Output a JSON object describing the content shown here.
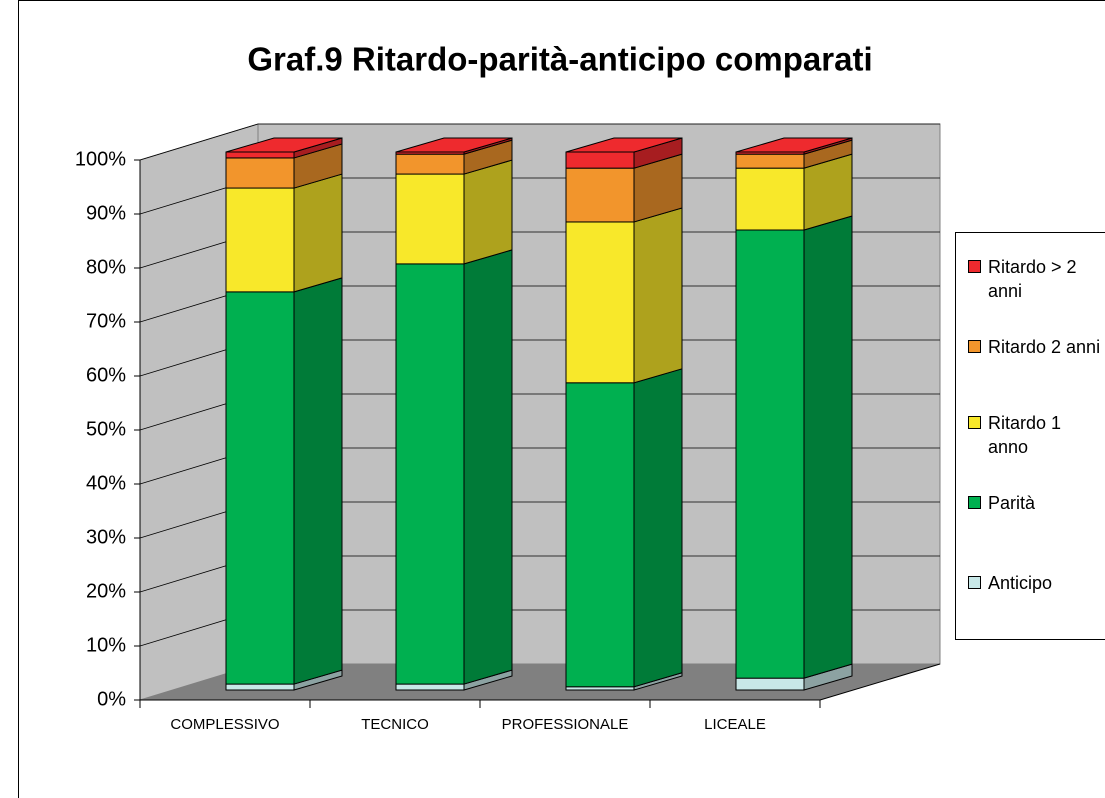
{
  "chart_data": {
    "type": "bar",
    "stacked": true,
    "three_d": true,
    "title": "Graf.9 Ritardo-parità-anticipo comparati",
    "categories": [
      "COMPLESSIVO",
      "TECNICO",
      "PROFESSIONALE",
      "LICEALE"
    ],
    "series": [
      {
        "name": "Anticipo",
        "color": "#c8e8e8",
        "values": [
          1.1,
          1.1,
          0.6,
          2.2
        ]
      },
      {
        "name": "Parità",
        "color": "#00b050",
        "values": [
          72.9,
          78.1,
          56.5,
          83.3
        ]
      },
      {
        "name": "Ritardo 1 anno",
        "color": "#f8e82a",
        "values": [
          19.3,
          16.7,
          29.9,
          11.5
        ]
      },
      {
        "name": "Ritardo 2 anni",
        "color": "#f2952c",
        "values": [
          5.6,
          3.7,
          10.0,
          2.6
        ]
      },
      {
        "name": "Ritardo > 2 anni",
        "color": "#ee2a2e",
        "values": [
          1.1,
          0.4,
          3.0,
          0.4
        ]
      }
    ],
    "ylim": [
      0,
      100
    ],
    "yticks": [
      {
        "value": 0,
        "label": "0%"
      },
      {
        "value": 10,
        "label": "10%"
      },
      {
        "value": 20,
        "label": "20%"
      },
      {
        "value": 30,
        "label": "30%"
      },
      {
        "value": 40,
        "label": "40%"
      },
      {
        "value": 50,
        "label": "50%"
      },
      {
        "value": 60,
        "label": "60%"
      },
      {
        "value": 70,
        "label": "70%"
      },
      {
        "value": 80,
        "label": "80%"
      },
      {
        "value": 90,
        "label": "90%"
      },
      {
        "value": 100,
        "label": "100%"
      }
    ],
    "grid": true,
    "legend": "right"
  }
}
